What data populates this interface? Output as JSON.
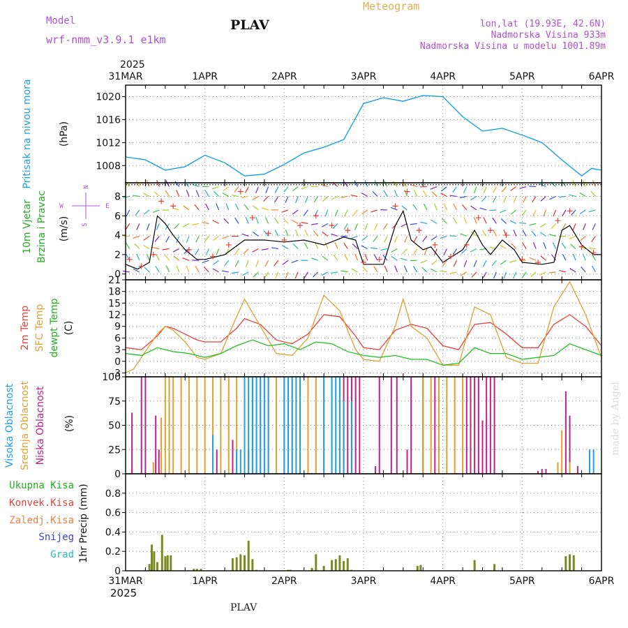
{
  "header": {
    "model_label": "Model",
    "model_name": "wrf-nmm_v3.9.1 e1km",
    "station": "PLAV",
    "product": "Meteogram",
    "location": "lon,lat (19.93E, 42.6N)",
    "elevation": "Nadmorska Visina 933m",
    "model_elevation": "Nadmorska Visina u modelu 1001.89m",
    "footer_station": "PLAV",
    "credit": "made by Angel"
  },
  "time_axis": {
    "year": "2025",
    "labels": [
      "31MAR",
      "1APR",
      "2APR",
      "3APR",
      "4APR",
      "5APR",
      "6APR"
    ]
  },
  "colors": {
    "pressure": "#1aa0e6",
    "wind_speed": "#000000",
    "gust_marker": "#e8403a",
    "temp_2m": "#e8403a",
    "temp_sfc": "#e0a030",
    "dewpoint": "#20c020",
    "cloud_high": "#1aa0e6",
    "cloud_mid": "#e0a030",
    "cloud_low": "#c0208c",
    "precip_total": "#7a8a20",
    "precip_conv": "#c84020",
    "label_total": "#20b020",
    "label_conv": "#e8403a",
    "label_freezing": "#f08040",
    "label_snow": "#4040e0",
    "label_hail": "#20c0c0",
    "header_purple": "#b050d0",
    "header_gold": "#e0b050"
  },
  "chart_data": [
    {
      "type": "line",
      "panel": "pressure",
      "ylabel_left": "Pritisak na nivou mora",
      "ylabel_unit": "(hPa)",
      "ylim": [
        1005,
        1022
      ],
      "yticks": [
        "1008",
        "1012",
        "1016",
        "1020"
      ],
      "grid": true,
      "x_unit": "days since 31MAR 00UTC",
      "series": [
        {
          "x": [
            0,
            0.25,
            0.5,
            0.75,
            1.0,
            1.25,
            1.5,
            1.75,
            2.0,
            2.25,
            2.5,
            2.75,
            3.0,
            3.25,
            3.5,
            3.75,
            4.0,
            4.25,
            4.5,
            4.75,
            5.0,
            5.25,
            5.5,
            5.75,
            5.875,
            6.0
          ],
          "values": [
            1009.5,
            1009.0,
            1007.2,
            1007.8,
            1009.8,
            1008.5,
            1006.2,
            1006.5,
            1008.2,
            1010.2,
            1011.2,
            1012.5,
            1018.8,
            1019.8,
            1019.2,
            1020.2,
            1020.0,
            1016.5,
            1014.0,
            1014.5,
            1013.3,
            1012.0,
            1009.0,
            1006.2,
            1007.5,
            1007.2
          ]
        }
      ]
    },
    {
      "type": "line",
      "panel": "wind",
      "ylabel_left": [
        "10m Vjetar",
        "Brzina i Pravac"
      ],
      "ylabel_unit": "(m/s)",
      "compass": [
        "N",
        "W",
        "E",
        "S"
      ],
      "ylim": [
        -0.6,
        9.4
      ],
      "yticks": [
        "0",
        "2",
        "4",
        "6",
        "8"
      ],
      "grid": true,
      "series": [
        {
          "x": [
            0,
            0.15,
            0.3,
            0.4,
            0.5,
            0.6,
            0.75,
            0.9,
            1.0,
            1.25,
            1.5,
            1.75,
            2.0,
            2.25,
            2.5,
            2.75,
            2.9,
            3.0,
            3.25,
            3.4,
            3.5,
            3.6,
            3.75,
            3.85,
            4.0,
            4.25,
            4.4,
            4.5,
            4.6,
            4.75,
            4.9,
            5.0,
            5.25,
            5.4,
            5.5,
            5.6,
            5.75,
            5.9,
            6.0
          ],
          "values": [
            1.0,
            0.5,
            1.2,
            6.0,
            5.2,
            4.0,
            2.5,
            1.5,
            1.5,
            2.0,
            3.5,
            3.5,
            3.3,
            3.5,
            3.0,
            3.8,
            3.5,
            1.0,
            1.0,
            5.0,
            6.5,
            3.5,
            2.5,
            2.8,
            1.2,
            2.5,
            4.5,
            3.0,
            2.0,
            3.5,
            2.5,
            1.2,
            1.0,
            1.2,
            4.5,
            5.0,
            3.0,
            2.0,
            2.0
          ]
        },
        {
          "name": "gust",
          "x": [
            0.05,
            0.2,
            0.35,
            0.45,
            0.6,
            0.8,
            1.1,
            1.3,
            1.45,
            1.6,
            1.8,
            2.0,
            2.2,
            2.4,
            2.6,
            2.8,
            3.0,
            3.2,
            3.4,
            3.55,
            3.7,
            3.9,
            4.1,
            4.3,
            4.45,
            4.6,
            4.8,
            5.0,
            5.2,
            5.45,
            5.6,
            5.75,
            5.9
          ],
          "values": [
            1.5,
            0.8,
            2.0,
            7.5,
            7.0,
            2.5,
            1.8,
            3.0,
            8.5,
            5.8,
            4.2,
            3.5,
            5.0,
            6.0,
            5.0,
            4.5,
            1.2,
            1.5,
            7.0,
            8.5,
            4.5,
            3.0,
            1.8,
            3.0,
            5.8,
            4.5,
            4.0,
            1.5,
            1.2,
            5.5,
            6.5,
            2.8,
            2.2
          ]
        }
      ]
    },
    {
      "type": "line",
      "panel": "temperature",
      "ylabel_left": [
        "2m Temp",
        "SFC Temp",
        "dewpt Temp"
      ],
      "ylabel_unit": "(C)",
      "ylim": [
        -4,
        21
      ],
      "yticks": [
        "-3",
        "0",
        "3",
        "6",
        "9",
        "12",
        "15",
        "18",
        "21"
      ],
      "grid": true,
      "series": [
        {
          "name": "2m Temp",
          "x": [
            0,
            0.2,
            0.4,
            0.5,
            0.6,
            0.75,
            0.9,
            1.0,
            1.2,
            1.4,
            1.5,
            1.7,
            1.9,
            2.1,
            2.3,
            2.5,
            2.7,
            2.9,
            3.0,
            3.2,
            3.4,
            3.6,
            3.8,
            4.0,
            4.2,
            4.4,
            4.6,
            4.8,
            5.0,
            5.2,
            5.4,
            5.6,
            5.8,
            6.0
          ],
          "values": [
            3.5,
            3.0,
            6.5,
            9.0,
            8.5,
            7.0,
            5.5,
            5.0,
            5.0,
            8.5,
            11.0,
            9.5,
            5.5,
            4.5,
            7.0,
            12.0,
            11.5,
            6.5,
            3.5,
            3.0,
            8.0,
            9.5,
            8.5,
            4.0,
            3.0,
            9.5,
            10.0,
            7.0,
            3.5,
            3.5,
            9.5,
            12.0,
            9.0,
            4.0
          ]
        },
        {
          "name": "SFC Temp",
          "x": [
            0,
            0.1,
            0.2,
            0.4,
            0.5,
            0.6,
            0.75,
            0.9,
            1.0,
            1.2,
            1.4,
            1.5,
            1.7,
            1.9,
            2.1,
            2.3,
            2.5,
            2.7,
            2.9,
            3.0,
            3.2,
            3.4,
            3.5,
            3.6,
            3.8,
            4.0,
            4.2,
            4.4,
            4.5,
            4.6,
            4.8,
            5.0,
            5.2,
            5.4,
            5.6,
            5.8,
            6.0
          ],
          "values": [
            -3.0,
            -2.0,
            1.0,
            7.0,
            9.0,
            8.0,
            5.0,
            1.0,
            0.5,
            2.0,
            11.5,
            16.0,
            9.0,
            2.0,
            1.5,
            6.0,
            17.0,
            13.0,
            3.0,
            0.5,
            0.0,
            9.0,
            16.0,
            9.0,
            6.0,
            -1.0,
            -1.0,
            14.0,
            13.0,
            12.0,
            1.0,
            -0.5,
            -0.5,
            14.0,
            20.5,
            12.0,
            1.0
          ]
        },
        {
          "name": "dewpt Temp",
          "x": [
            0,
            0.2,
            0.4,
            0.6,
            0.8,
            1.0,
            1.2,
            1.4,
            1.6,
            1.8,
            2.0,
            2.2,
            2.4,
            2.6,
            2.8,
            3.0,
            3.2,
            3.4,
            3.6,
            3.8,
            4.0,
            4.2,
            4.4,
            4.6,
            4.8,
            5.0,
            5.2,
            5.4,
            5.6,
            5.8,
            6.0
          ],
          "values": [
            2.0,
            1.5,
            3.5,
            2.5,
            2.0,
            1.0,
            2.0,
            4.0,
            5.5,
            4.0,
            4.5,
            3.0,
            5.0,
            4.5,
            2.5,
            1.5,
            1.0,
            1.5,
            0.5,
            0.5,
            -1.0,
            -0.5,
            3.5,
            2.0,
            2.0,
            0.5,
            1.0,
            1.5,
            4.5,
            3.0,
            1.5
          ]
        }
      ]
    },
    {
      "type": "bar",
      "panel": "clouds",
      "ylabel_left": [
        "Visoka Oblacnost",
        "Srednja Oblacnost",
        "Niska Oblacnost"
      ],
      "ylabel_unit": "(%)",
      "ylim": [
        0,
        100
      ],
      "yticks": [
        "0",
        "25",
        "50",
        "75",
        "100"
      ],
      "grid": true,
      "series": [
        {
          "name": "Niska Oblacnost",
          "x": [
            0.08,
            0.2,
            0.25,
            0.38,
            0.42,
            1.15,
            1.35,
            1.55,
            1.65,
            2.75,
            2.8,
            2.85,
            2.9,
            2.95,
            3.15,
            3.2,
            3.35,
            3.42,
            3.55,
            3.6,
            3.75,
            3.9,
            4.3,
            4.35,
            4.4,
            4.45,
            4.5,
            4.55,
            4.6,
            4.65,
            5.2,
            5.25,
            5.3,
            5.55,
            5.6,
            5.7
          ],
          "values": [
            63,
            100,
            100,
            60,
            25,
            25,
            35,
            25,
            25,
            100,
            100,
            100,
            100,
            100,
            8,
            100,
            100,
            100,
            25,
            100,
            100,
            100,
            100,
            100,
            100,
            100,
            55,
            100,
            100,
            100,
            3,
            5,
            5,
            85,
            60,
            8
          ]
        },
        {
          "name": "Srednja Oblacnost",
          "x": [
            0.35,
            0.45,
            0.5,
            0.55,
            0.6,
            0.7,
            0.8,
            0.9,
            1.0,
            1.1,
            1.2,
            1.3,
            1.4,
            1.5,
            1.6,
            1.7,
            1.8,
            1.9,
            2.0,
            2.1,
            2.2,
            2.3,
            2.4,
            2.5,
            2.6,
            2.7,
            3.75,
            3.85,
            3.95,
            4.05,
            4.15,
            4.25,
            5.45,
            5.5,
            5.6
          ],
          "values": [
            12,
            58,
            100,
            100,
            100,
            100,
            100,
            100,
            100,
            100,
            100,
            100,
            100,
            100,
            100,
            100,
            100,
            100,
            100,
            100,
            100,
            100,
            100,
            100,
            100,
            100,
            100,
            100,
            100,
            100,
            100,
            100,
            12,
            45,
            12
          ]
        },
        {
          "name": "Visoka Oblacnost",
          "x": [
            1.1,
            1.4,
            1.45,
            1.5,
            1.55,
            1.6,
            1.65,
            1.7,
            1.75,
            1.8,
            2.0,
            2.05,
            2.1,
            2.15,
            2.2,
            2.5,
            2.6,
            2.65,
            2.7,
            2.75,
            2.85,
            5.85,
            5.9
          ],
          "values": [
            40,
            25,
            25,
            100,
            100,
            100,
            100,
            100,
            100,
            100,
            100,
            100,
            100,
            100,
            100,
            100,
            100,
            100,
            100,
            75,
            75,
            25,
            25
          ]
        }
      ]
    },
    {
      "type": "bar",
      "panel": "precipitation",
      "legend": [
        "Ukupna Kisa",
        "Konvek.Kisa",
        "Zaledj.Kisa",
        "Snijeg",
        "Grad"
      ],
      "ylabel_unit": "1hr Precip (mm)",
      "ylim": [
        0,
        1.0
      ],
      "yticks": [
        "0",
        "0.2",
        "0.4",
        "0.6",
        "0.8"
      ],
      "grid": true,
      "series": [
        {
          "name": "Ukupna Kisa",
          "x": [
            0.3,
            0.33,
            0.36,
            0.4,
            0.46,
            0.5,
            0.53,
            0.57,
            0.86,
            0.9,
            0.95,
            1.35,
            1.4,
            1.45,
            1.5,
            1.55,
            1.6,
            1.65,
            2.05,
            2.08,
            2.35,
            2.4,
            2.5,
            2.6,
            2.65,
            2.7,
            2.75,
            2.8,
            2.85,
            3.68,
            3.72,
            4.4,
            4.65,
            5.55,
            5.6,
            5.65
          ],
          "values": [
            0.07,
            0.27,
            0.2,
            0.09,
            0.37,
            0.15,
            0.16,
            0.16,
            0.02,
            0.02,
            0.02,
            0.13,
            0.14,
            0.17,
            0.16,
            0.31,
            0.12,
            0.01,
            0.01,
            0.01,
            0.03,
            0.17,
            0.05,
            0.11,
            0.12,
            0.16,
            0.1,
            0.13,
            0.01,
            0.05,
            0.06,
            0.11,
            0.07,
            0.15,
            0.17,
            0.16
          ]
        }
      ]
    }
  ]
}
